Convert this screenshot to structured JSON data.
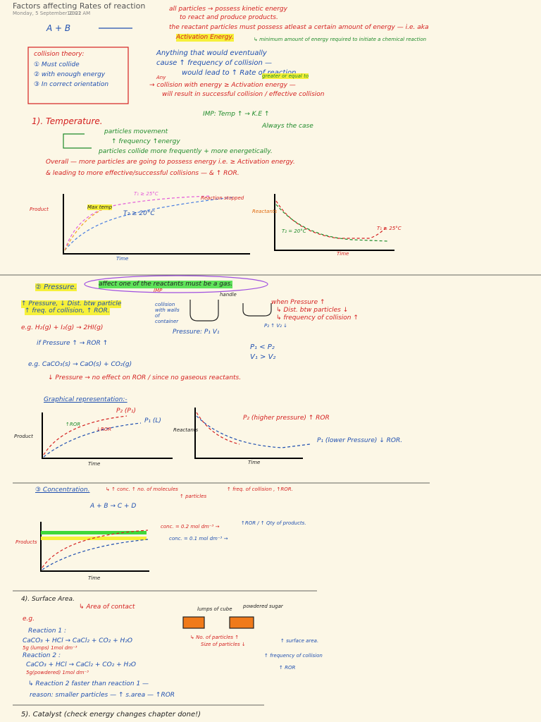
{
  "header": {
    "title": "Factors affecting Rates of reaction",
    "date": "Monday, 5 September 2022",
    "time": "10:01 AM"
  },
  "intro": {
    "equation": "A + B",
    "lines": [
      "all particles → possess kinetic energy",
      "to react and produce products.",
      "the reactant particles must possess atleast a certain amount of energy — i.e. aka"
    ],
    "highlight": "Activation Energy.",
    "definition": "↳ minimum amount of energy required to initiate a chemical reaction"
  },
  "collision_theory": {
    "title": "collision theory:",
    "points": [
      "① Must collide",
      "② with enough energy",
      "③ In correct orientation"
    ]
  },
  "frequency_note": {
    "lines": [
      "Anything that would eventually",
      "cause ↑ frequency of collision —",
      "would lead to ↑ Rate of reaction."
    ],
    "small": "greater or equal to",
    "any": "Any",
    "collision": "→ collision with energy ≥ Activation energy —",
    "result": "will result in successful collision / effective collision"
  },
  "temperature": {
    "heading": "1). Temperature.",
    "imp": "IMP: Temp ↑ → K.E ↑",
    "always": "Always the case",
    "lines": [
      "particles movement",
      "↑ frequency ↑energy",
      "particles collide more frequently + more energetically.",
      "Overall — more particles are going to possess energy i.e. ≥ Activation energy.",
      "& leading to more effective/successful collisions — & ↑ ROR."
    ],
    "graph_product": {
      "y_label": "Product",
      "x_label": "Time",
      "labels": [
        "Max temp",
        "T₁ ≥ 25°C",
        "T₂ ≥ 20°C",
        "Reaction stopped"
      ]
    },
    "graph_reactants": {
      "y_label": "Reactants",
      "x_label": "Time",
      "labels": [
        "T₂ = 20°C",
        "T₁ ≥ 25°C"
      ]
    }
  },
  "pressure": {
    "heading": "② Pressure.",
    "note": "affect one of the reactants must be a gas.",
    "imp": "IMP",
    "effects": [
      "↑ Pressure, ↓ Dist. btw particle",
      "↑ freq. of collision, ↑ ROR."
    ],
    "walls": "collision with walls of container",
    "handle": "handle",
    "diagram": [
      "Pressure: P₁ V₁",
      "P₂ ↑ V₂ ↓",
      "P₁ < P₂",
      "V₁ > V₂"
    ],
    "when": [
      "when Pressure ↑",
      "↳ Dist. btw particles ↓",
      "↳ frequency of collision ↑"
    ],
    "examples": [
      "e.g. H₂(g) + I₂(g) → 2HI(g)",
      "if Pressure ↑ → ROR ↑",
      "e.g. CaCO₃(s) → CaO(s) + CO₂(g)",
      "↓ Pressure → no effect on ROR / since no gaseous reactants."
    ],
    "graph_title": "Graphical representation:-",
    "graph_product": {
      "y_label": "Product",
      "x_label": "Time",
      "labels": [
        "P₂ (P₁)",
        "P₁ (L)",
        "↑ROR",
        "↓ROR"
      ]
    },
    "graph_reactants": {
      "y_label": "Reactants",
      "x_label": "Time",
      "labels": [
        "P₂ (higher pressure) ↑ ROR",
        "P₁ (lower Pressure) ↓ ROR."
      ]
    }
  },
  "concentration": {
    "heading": "③ Concentration.",
    "lines": [
      "↳ ↑ conc. ↑ no. of molecules",
      "↑ particles",
      "↑ freq. of collision , ↑ROR.",
      "A + B → C + D",
      "conc. = 0.2 mol dm⁻³ →",
      "↑ROR / ↑ Qty of products.",
      "conc. = 0.1 mol dm⁻³ →"
    ],
    "graph": {
      "y_label": "Products",
      "x_label": "Time"
    }
  },
  "surface_area": {
    "heading": "4). Surface Area.",
    "sub": "↳ Area of contact",
    "labels": [
      "lumps of cube",
      "powdered sugar"
    ],
    "eg": "e.g.",
    "lines": [
      "Reaction 1 :",
      "CaCO₃ + HCl → CaCl₂ + CO₂ + H₂O",
      "5g (lumps)   1mol dm⁻³",
      "Reaction 2 :",
      "CaCO₃ + HCl → CaCl₂ + CO₂ + H₂O",
      "5g(powdered)   1mol dm⁻³",
      "↳ Reaction 2 faster than reaction 1 —",
      "reason: smaller particles — ↑ s.area — ↑ROR"
    ],
    "side": [
      "↳ No. of particles ↑",
      "Size of particles ↓",
      "↑ surface area.",
      "↑ frequency of collision",
      "↑ ROR"
    ]
  },
  "catalyst": {
    "heading": "5). Catalyst (check energy changes chapter done!)"
  }
}
